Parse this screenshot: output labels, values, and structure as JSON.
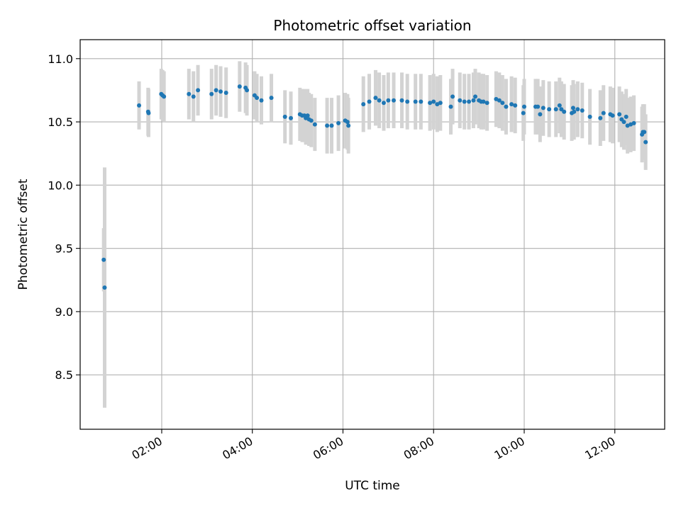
{
  "chart_data": {
    "type": "scatter",
    "title": "Photometric offset variation",
    "xlabel": "UTC time",
    "ylabel": "Photometric offset",
    "grid": true,
    "xlim": [
      0.2,
      13.1
    ],
    "ylim": [
      8.07,
      11.15
    ],
    "x_ticks": [
      2,
      4,
      6,
      8,
      10,
      12
    ],
    "x_tick_labels": [
      "02:00",
      "04:00",
      "06:00",
      "08:00",
      "10:00",
      "12:00"
    ],
    "y_ticks": [
      8.5,
      9.0,
      9.5,
      10.0,
      10.5,
      11.0
    ],
    "y_tick_labels": [
      "8.5",
      "9.0",
      "9.5",
      "10.0",
      "10.5",
      "11.0"
    ],
    "colors": {
      "point": "#1f77b4",
      "errorbar": "#d3d3d3",
      "grid": "#b0b0b0"
    },
    "series": [
      {
        "name": "Photometric offset",
        "points": [
          [
            0.72,
            9.41,
            0.25
          ],
          [
            0.74,
            9.19,
            0.95
          ],
          [
            1.5,
            10.63,
            0.19
          ],
          [
            1.7,
            10.58,
            0.19
          ],
          [
            1.71,
            10.57,
            0.19
          ],
          [
            1.99,
            10.72,
            0.2
          ],
          [
            2.02,
            10.71,
            0.2
          ],
          [
            2.05,
            10.7,
            0.2
          ],
          [
            2.6,
            10.72,
            0.2
          ],
          [
            2.7,
            10.7,
            0.2
          ],
          [
            2.8,
            10.75,
            0.2
          ],
          [
            3.1,
            10.72,
            0.2
          ],
          [
            3.2,
            10.75,
            0.2
          ],
          [
            3.3,
            10.74,
            0.2
          ],
          [
            3.42,
            10.73,
            0.2
          ],
          [
            3.72,
            10.78,
            0.2
          ],
          [
            3.85,
            10.77,
            0.2
          ],
          [
            3.88,
            10.75,
            0.2
          ],
          [
            4.05,
            10.71,
            0.19
          ],
          [
            4.1,
            10.69,
            0.19
          ],
          [
            4.2,
            10.67,
            0.19
          ],
          [
            4.42,
            10.69,
            0.19
          ],
          [
            4.72,
            10.54,
            0.21
          ],
          [
            4.85,
            10.53,
            0.21
          ],
          [
            5.05,
            10.56,
            0.21
          ],
          [
            5.1,
            10.55,
            0.21
          ],
          [
            5.15,
            10.55,
            0.21
          ],
          [
            5.18,
            10.53,
            0.21
          ],
          [
            5.22,
            10.55,
            0.21
          ],
          [
            5.25,
            10.52,
            0.21
          ],
          [
            5.3,
            10.51,
            0.21
          ],
          [
            5.38,
            10.48,
            0.21
          ],
          [
            5.65,
            10.47,
            0.22
          ],
          [
            5.75,
            10.47,
            0.22
          ],
          [
            5.9,
            10.49,
            0.22
          ],
          [
            6.05,
            10.51,
            0.22
          ],
          [
            6.1,
            10.5,
            0.22
          ],
          [
            6.12,
            10.47,
            0.22
          ],
          [
            6.45,
            10.64,
            0.22
          ],
          [
            6.58,
            10.66,
            0.22
          ],
          [
            6.72,
            10.69,
            0.22
          ],
          [
            6.8,
            10.67,
            0.22
          ],
          [
            6.9,
            10.65,
            0.22
          ],
          [
            7.0,
            10.67,
            0.22
          ],
          [
            7.12,
            10.67,
            0.22
          ],
          [
            7.3,
            10.67,
            0.22
          ],
          [
            7.42,
            10.66,
            0.22
          ],
          [
            7.6,
            10.66,
            0.22
          ],
          [
            7.72,
            10.66,
            0.22
          ],
          [
            7.92,
            10.65,
            0.22
          ],
          [
            8.0,
            10.66,
            0.22
          ],
          [
            8.08,
            10.64,
            0.22
          ],
          [
            8.15,
            10.65,
            0.22
          ],
          [
            8.38,
            10.62,
            0.22
          ],
          [
            8.42,
            10.7,
            0.22
          ],
          [
            8.58,
            10.67,
            0.22
          ],
          [
            8.68,
            10.66,
            0.22
          ],
          [
            8.78,
            10.66,
            0.22
          ],
          [
            8.88,
            10.67,
            0.22
          ],
          [
            8.92,
            10.7,
            0.22
          ],
          [
            9.0,
            10.67,
            0.22
          ],
          [
            9.05,
            10.66,
            0.22
          ],
          [
            9.1,
            10.66,
            0.22
          ],
          [
            9.18,
            10.65,
            0.22
          ],
          [
            9.38,
            10.68,
            0.22
          ],
          [
            9.45,
            10.67,
            0.22
          ],
          [
            9.52,
            10.65,
            0.22
          ],
          [
            9.6,
            10.62,
            0.22
          ],
          [
            9.72,
            10.64,
            0.22
          ],
          [
            9.8,
            10.63,
            0.22
          ],
          [
            9.98,
            10.57,
            0.22
          ],
          [
            10.0,
            10.62,
            0.22
          ],
          [
            10.25,
            10.62,
            0.22
          ],
          [
            10.3,
            10.62,
            0.22
          ],
          [
            10.35,
            10.56,
            0.22
          ],
          [
            10.42,
            10.61,
            0.22
          ],
          [
            10.55,
            10.6,
            0.22
          ],
          [
            10.7,
            10.6,
            0.22
          ],
          [
            10.78,
            10.63,
            0.22
          ],
          [
            10.82,
            10.6,
            0.22
          ],
          [
            10.88,
            10.58,
            0.22
          ],
          [
            11.05,
            10.57,
            0.22
          ],
          [
            11.08,
            10.61,
            0.22
          ],
          [
            11.1,
            10.58,
            0.22
          ],
          [
            11.18,
            10.6,
            0.22
          ],
          [
            11.28,
            10.59,
            0.22
          ],
          [
            11.45,
            10.54,
            0.22
          ],
          [
            11.68,
            10.53,
            0.22
          ],
          [
            11.75,
            10.57,
            0.22
          ],
          [
            11.9,
            10.56,
            0.22
          ],
          [
            11.95,
            10.55,
            0.22
          ],
          [
            12.1,
            10.56,
            0.22
          ],
          [
            12.15,
            10.52,
            0.22
          ],
          [
            12.2,
            10.5,
            0.22
          ],
          [
            12.25,
            10.54,
            0.22
          ],
          [
            12.28,
            10.47,
            0.22
          ],
          [
            12.35,
            10.48,
            0.22
          ],
          [
            12.42,
            10.49,
            0.22
          ],
          [
            12.6,
            10.4,
            0.22
          ],
          [
            12.62,
            10.42,
            0.22
          ],
          [
            12.65,
            10.42,
            0.22
          ],
          [
            12.68,
            10.34,
            0.22
          ]
        ]
      }
    ]
  }
}
